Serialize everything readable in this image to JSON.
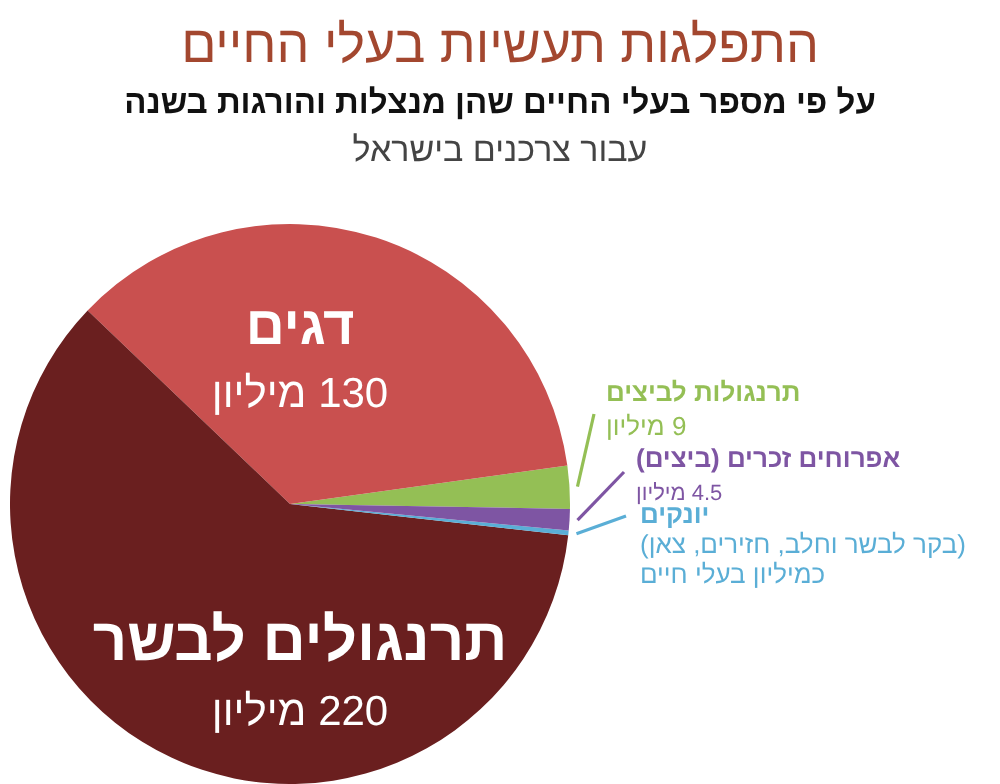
{
  "chart_data": {
    "type": "pie",
    "title": "התפלגות תעשיות בעלי החיים",
    "subtitle": "על פי מספר בעלי החיים שהן מנצלות והורגות בשנה",
    "categories": [
      "תרנגולות לביצים",
      "דגים",
      "תרנגולים לבשר",
      "יונקים",
      "אפרוחים זכרים (ביצים)"
    ],
    "values": [
      9,
      130,
      220,
      1,
      4.5
    ],
    "value_labels": [
      "9 מיליון",
      "130 מיליון",
      "220 מיליון",
      "כמיליון בעלי חיים",
      "4.5 מיליון"
    ],
    "colors": [
      "#94bf55",
      "#c9504f",
      "#6a1f1f",
      "#5aaed6",
      "#7e55a3"
    ],
    "annotations": [
      "עבור צרכנים בישראל",
      "(בקר לבשר וחלב, חזירים, צאן)"
    ]
  }
}
